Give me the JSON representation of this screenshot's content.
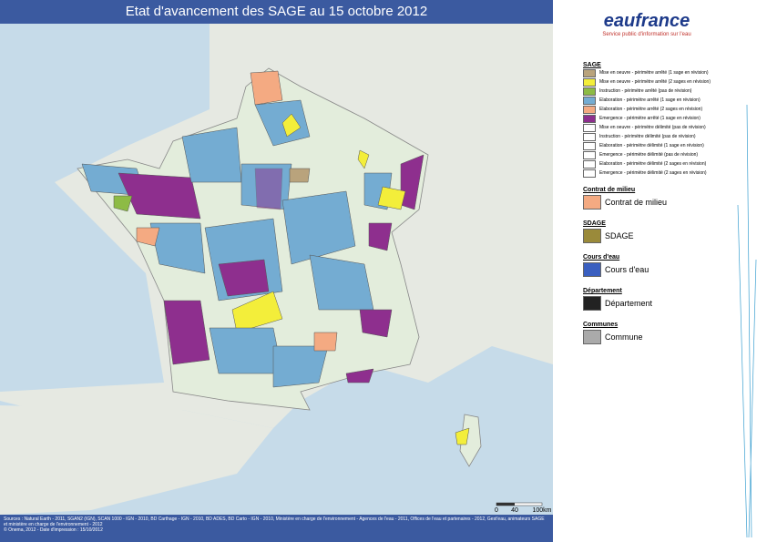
{
  "header": {
    "title": "Etat d'avancement des SAGE au 15 octobre 2012"
  },
  "logo": {
    "name": "eaufrance",
    "tagline": "Service public d'information sur l'eau"
  },
  "legend": {
    "sections": [
      {
        "title": "SAGE",
        "items": [
          {
            "label": "Mise en oeuvre - périmètre arrêté (1 sage en révision)",
            "color": "#b9a37c"
          },
          {
            "label": "Mise en oeuvre - périmètre arrêté (2 sages en révision)",
            "color": "#f3ee3a"
          },
          {
            "label": "Instruction - périmètre arrêté (pas de révision)",
            "color": "#8dbb45"
          },
          {
            "label": "Elaboration - périmètre arrêté (1 sage en révision)",
            "color": "#74acd2"
          },
          {
            "label": "Elaboration - périmètre arrêté (2 sages en révision)",
            "color": "#f4aa82"
          },
          {
            "label": "Emergence - périmètre arrêté (1 sage en révision)",
            "color": "#8e2f8e"
          },
          {
            "label": "Mise en oeuvre - périmètre délimité (pas de révision)",
            "color": "#ffffff"
          },
          {
            "label": "Instruction - périmètre délimité (pas de révision)",
            "color": "#ffffff"
          },
          {
            "label": "Elaboration - périmètre délimité (1 sage en révision)",
            "color": "#ffffff"
          },
          {
            "label": "Emergence - périmètre délimité (pas de révision)",
            "color": "#ffffff"
          },
          {
            "label": "Elaboration - périmètre délimité (2 sages en révision)",
            "color": "#ffffff"
          },
          {
            "label": "Emergence - périmètre délimité (2 sages en révision)",
            "color": "#ffffff"
          }
        ]
      },
      {
        "title": "Contrat de milieu",
        "items": [
          {
            "label": "Contrat de milieu",
            "color": "#f4aa82"
          }
        ]
      },
      {
        "title": "SDAGE",
        "items": [
          {
            "label": "SDAGE",
            "color": "#9a8a3a"
          }
        ]
      },
      {
        "title": "Cours d'eau",
        "items": [
          {
            "label": "Cours d'eau",
            "color": "#3a5fc0"
          }
        ]
      },
      {
        "title": "Département",
        "items": [
          {
            "label": "Département",
            "color": "#222222"
          }
        ]
      },
      {
        "title": "Communes",
        "items": [
          {
            "label": "Commune",
            "color": "#aaaaaa"
          }
        ]
      }
    ]
  },
  "scale": {
    "labels": [
      "0",
      "40",
      "100km"
    ]
  },
  "footer": {
    "sources": "Sources : Natural Earth - 2011, SGAN2 (IGN), SCAN 1000 - IGN - 2010, BD Carthage - IGN - 2010, BD ADES, BD Carto - IGN - 2010, Ministère en charge de l'environnement - Agences de l'eau - 2011, Offices de l'eau et partenaires - 2012, Gest'eau, animateurs SAGE et ministère en charge de l'environnement - 2012",
    "copyright": "© Onema, 2012 - Date d'impression : 15/10/2012"
  }
}
